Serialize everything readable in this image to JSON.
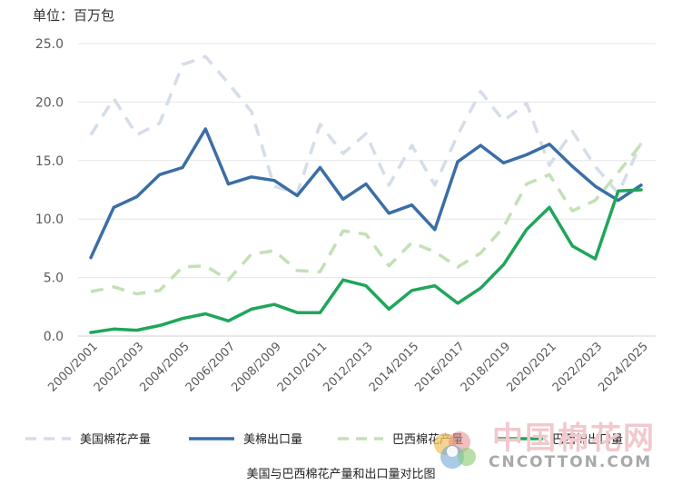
{
  "unit_label": "单位：百万包",
  "caption": "美国与巴西棉花产量和出口量对比图",
  "watermark": {
    "cn_text": "中国棉花网",
    "en_text": "CNCOTTON.COM"
  },
  "colors": {
    "us_production": "#d5dde8",
    "us_export": "#3b6ea5",
    "br_production": "#c3e0b6",
    "br_export": "#1fa65a",
    "axis_text": "#5a5a5a",
    "gridline": "#e6e6e6"
  },
  "chart_data": {
    "type": "line",
    "categories": [
      "2000/2001",
      "2001/2002",
      "2002/2003",
      "2003/2004",
      "2004/2005",
      "2005/2006",
      "2006/2007",
      "2007/2008",
      "2008/2009",
      "2009/2010",
      "2010/2011",
      "2011/2012",
      "2012/2013",
      "2013/2014",
      "2014/2015",
      "2015/2016",
      "2016/2017",
      "2017/2018",
      "2018/2019",
      "2019/2020",
      "2020/2021",
      "2021/2022",
      "2022/2023",
      "2023/2024",
      "2024/2025"
    ],
    "x_tick_labels": [
      "2000/2001",
      "2002/2003",
      "2004/2005",
      "2006/2007",
      "2008/2009",
      "2010/2011",
      "2012/2013",
      "2014/2015",
      "2016/2017",
      "2018/2019",
      "2020/2021",
      "2022/2023",
      "2024/2025"
    ],
    "y_ticks": [
      "0.0",
      "5.0",
      "10.0",
      "15.0",
      "20.0",
      "25.0"
    ],
    "ylim": [
      0,
      25
    ],
    "grid": true,
    "legend_position": "bottom",
    "series": [
      {
        "name": "美国棉花产量",
        "style": "dashed",
        "color_key": "us_production",
        "values": [
          17.2,
          20.3,
          17.2,
          18.2,
          23.2,
          23.9,
          21.6,
          19.2,
          12.8,
          12.2,
          18.1,
          15.6,
          17.3,
          12.9,
          16.3,
          12.9,
          17.2,
          20.9,
          18.4,
          19.9,
          14.6,
          17.5,
          14.5,
          12.2,
          16.5
        ]
      },
      {
        "name": "美棉出口量",
        "style": "solid",
        "color_key": "us_export",
        "values": [
          6.7,
          11.0,
          11.9,
          13.8,
          14.4,
          17.7,
          13.0,
          13.6,
          13.3,
          12.0,
          14.4,
          11.7,
          13.0,
          10.5,
          11.2,
          9.1,
          14.9,
          16.3,
          14.8,
          15.5,
          16.4,
          14.5,
          12.8,
          11.6,
          12.9
        ]
      },
      {
        "name": "巴西棉花产量",
        "style": "dashed",
        "color_key": "br_production",
        "values": [
          3.8,
          4.2,
          3.6,
          3.9,
          5.9,
          6.0,
          4.8,
          7.0,
          7.3,
          5.6,
          5.5,
          9.0,
          8.7,
          6.0,
          8.0,
          7.2,
          5.9,
          7.1,
          9.3,
          13.0,
          13.8,
          10.7,
          11.6,
          14.0,
          16.4
        ]
      },
      {
        "name": "巴西棉出口量",
        "style": "solid",
        "color_key": "br_export",
        "values": [
          0.3,
          0.6,
          0.5,
          0.9,
          1.5,
          1.9,
          1.3,
          2.3,
          2.7,
          2.0,
          2.0,
          4.8,
          4.3,
          2.3,
          3.9,
          4.3,
          2.8,
          4.1,
          6.1,
          9.1,
          11.0,
          7.7,
          6.6,
          12.4,
          12.5
        ]
      }
    ]
  }
}
